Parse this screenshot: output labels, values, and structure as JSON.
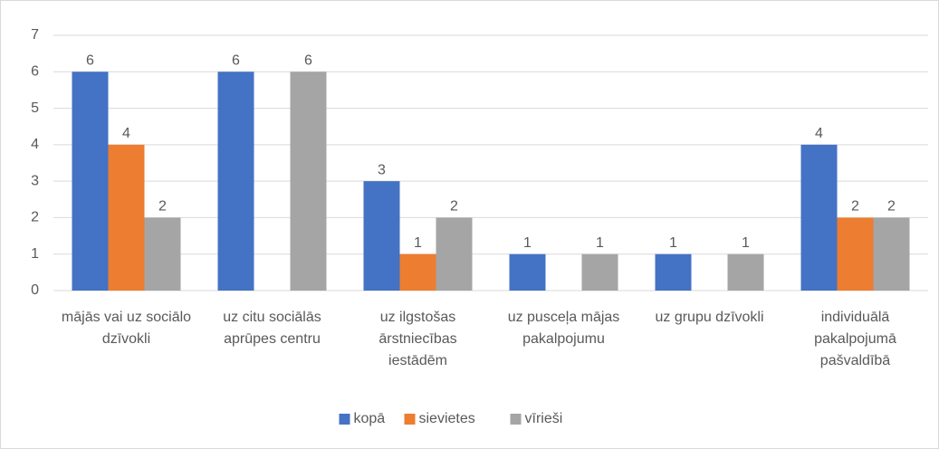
{
  "chart_data": {
    "type": "bar",
    "categories": [
      "mājās vai uz sociālo dzīvokli",
      "uz citu sociālās aprūpes centru",
      "uz ilgstošas ārstniecības iestādēm",
      "uz pusceļa mājas pakalpojumu",
      "uz grupu dzīvokli",
      "individuālā pakalpojumā pašvaldībā"
    ],
    "series": [
      {
        "name": "kopā",
        "color": "#4472c4",
        "values": [
          6,
          6,
          3,
          1,
          1,
          4
        ]
      },
      {
        "name": "sievietes",
        "color": "#ed7d31",
        "values": [
          4,
          null,
          1,
          null,
          null,
          2
        ]
      },
      {
        "name": "vīrieši",
        "color": "#a5a5a5",
        "values": [
          2,
          6,
          2,
          1,
          1,
          2
        ]
      }
    ],
    "ylim": [
      0,
      7
    ],
    "yticks": [
      0,
      1,
      2,
      3,
      4,
      5,
      6,
      7
    ],
    "grid": true,
    "legend": "bottom"
  }
}
